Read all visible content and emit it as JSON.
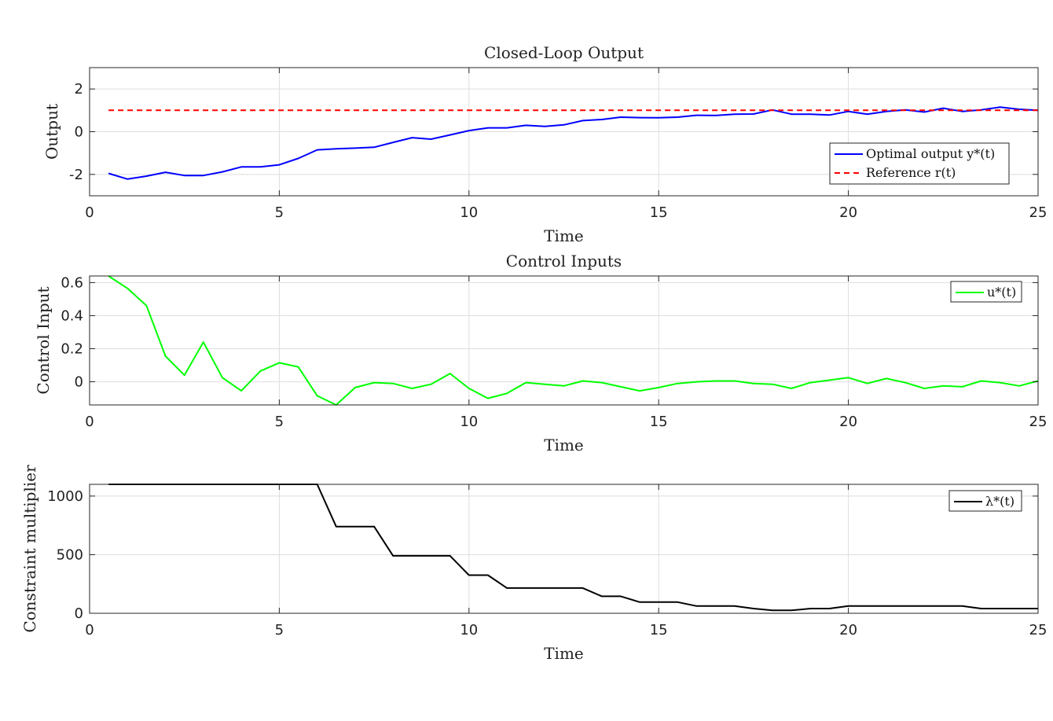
{
  "chart_data": [
    {
      "type": "line",
      "title": "Closed-Loop Output",
      "xlabel": "Time",
      "ylabel": "Output",
      "xlim": [
        0,
        25
      ],
      "ylim": [
        -3,
        3
      ],
      "xticks": [
        "0",
        "5",
        "10",
        "15",
        "20",
        "25"
      ],
      "yticks": [
        "-2",
        "0",
        "2"
      ],
      "ytick_values": [
        -2,
        0,
        2
      ],
      "grid": true,
      "legend_position": "bottom-right",
      "series": [
        {
          "name": "Optimal output y*(t)",
          "color": "#0000ff",
          "style": "solid",
          "x": [
            0.5,
            1,
            1.5,
            2,
            2.5,
            3,
            3.5,
            4,
            4.5,
            5,
            5.5,
            6,
            6.5,
            7,
            7.5,
            8,
            8.5,
            9,
            9.5,
            10,
            10.5,
            11,
            11.5,
            12,
            12.5,
            13,
            13.5,
            14,
            14.5,
            15,
            15.5,
            16,
            16.5,
            17,
            17.5,
            18,
            18.5,
            19,
            19.5,
            20,
            20.5,
            21,
            21.5,
            22,
            22.5,
            23,
            23.5,
            24,
            24.5,
            25
          ],
          "values": [
            -1.95,
            -2.22,
            -2.08,
            -1.9,
            -2.05,
            -2.05,
            -1.88,
            -1.65,
            -1.65,
            -1.55,
            -1.25,
            -0.85,
            -0.8,
            -0.77,
            -0.73,
            -0.5,
            -0.28,
            -0.35,
            -0.15,
            0.05,
            0.18,
            0.18,
            0.3,
            0.25,
            0.32,
            0.52,
            0.57,
            0.68,
            0.66,
            0.65,
            0.68,
            0.77,
            0.76,
            0.82,
            0.83,
            1.02,
            0.82,
            0.82,
            0.78,
            0.95,
            0.82,
            0.95,
            1.02,
            0.92,
            1.1,
            0.95,
            1.02,
            1.15,
            1.05,
            1.0
          ]
        },
        {
          "name": "Reference r(t)",
          "color": "#ff0000",
          "style": "dashed",
          "x": [
            0.5,
            25
          ],
          "values": [
            1,
            1
          ]
        }
      ]
    },
    {
      "type": "line",
      "title": "Control Inputs",
      "xlabel": "Time",
      "ylabel": "Control Input",
      "xlim": [
        0,
        25
      ],
      "ylim": [
        -0.14,
        0.64
      ],
      "xticks": [
        "0",
        "5",
        "10",
        "15",
        "20",
        "25"
      ],
      "yticks": [
        "0",
        "0.2",
        "0.4",
        "0.6"
      ],
      "ytick_values": [
        0,
        0.2,
        0.4,
        0.6
      ],
      "grid": true,
      "legend_position": "top-right",
      "series": [
        {
          "name": "u*(t)",
          "color": "#00ff00",
          "style": "solid",
          "x": [
            0.5,
            1,
            1.5,
            2,
            2.5,
            3,
            3.5,
            4,
            4.5,
            5,
            5.5,
            6,
            6.5,
            7,
            7.5,
            8,
            8.5,
            9,
            9.5,
            10,
            10.5,
            11,
            11.5,
            12,
            12.5,
            13,
            13.5,
            14,
            14.5,
            15,
            15.5,
            16,
            16.5,
            17,
            17.5,
            18,
            18.5,
            19,
            19.5,
            20,
            20.5,
            21,
            21.5,
            22,
            22.5,
            23,
            23.5,
            24,
            24.5,
            25
          ],
          "values": [
            0.64,
            0.565,
            0.46,
            0.155,
            0.04,
            0.24,
            0.025,
            -0.055,
            0.065,
            0.115,
            0.09,
            -0.085,
            -0.14,
            -0.035,
            -0.005,
            -0.01,
            -0.04,
            -0.015,
            0.05,
            -0.04,
            -0.1,
            -0.07,
            -0.005,
            -0.015,
            -0.025,
            0.005,
            -0.005,
            -0.03,
            -0.055,
            -0.035,
            -0.01,
            0,
            0.005,
            0.005,
            -0.01,
            -0.015,
            -0.04,
            -0.005,
            0.01,
            0.025,
            -0.01,
            0.02,
            -0.005,
            -0.04,
            -0.025,
            -0.03,
            0.005,
            -0.005,
            -0.025,
            0.005
          ]
        }
      ]
    },
    {
      "type": "line",
      "title": "",
      "xlabel": "Time",
      "ylabel": "Constraint multiplier",
      "xlim": [
        0,
        25
      ],
      "ylim": [
        0,
        1100
      ],
      "xticks": [
        "0",
        "5",
        "10",
        "15",
        "20",
        "25"
      ],
      "yticks": [
        "0",
        "500",
        "1000"
      ],
      "ytick_values": [
        0,
        500,
        1000
      ],
      "grid": true,
      "legend_position": "top-right",
      "series": [
        {
          "name": "λ*(t)",
          "color": "#000000",
          "style": "solid",
          "x": [
            0.5,
            1,
            1.5,
            2,
            2.5,
            3,
            3.5,
            4,
            4.5,
            5,
            5.5,
            6,
            6.5,
            7,
            7.5,
            8,
            8.5,
            9,
            9.5,
            10,
            10.5,
            11,
            11.5,
            12,
            12.5,
            13,
            13.5,
            14,
            14.5,
            15,
            15.5,
            16,
            16.5,
            17,
            17.5,
            18,
            18.5,
            19,
            19.5,
            20,
            20.5,
            21,
            21.5,
            22,
            22.5,
            23,
            23.5,
            24,
            24.5,
            25
          ],
          "values": [
            1100,
            1100,
            1100,
            1100,
            1100,
            1100,
            1100,
            1100,
            1100,
            1100,
            1100,
            1100,
            740,
            740,
            740,
            490,
            490,
            490,
            490,
            325,
            325,
            215,
            215,
            215,
            215,
            215,
            145,
            145,
            95,
            95,
            95,
            62,
            62,
            62,
            40,
            25,
            25,
            40,
            40,
            62,
            62,
            62,
            62,
            62,
            62,
            62,
            40,
            40,
            40,
            40
          ]
        }
      ]
    }
  ]
}
